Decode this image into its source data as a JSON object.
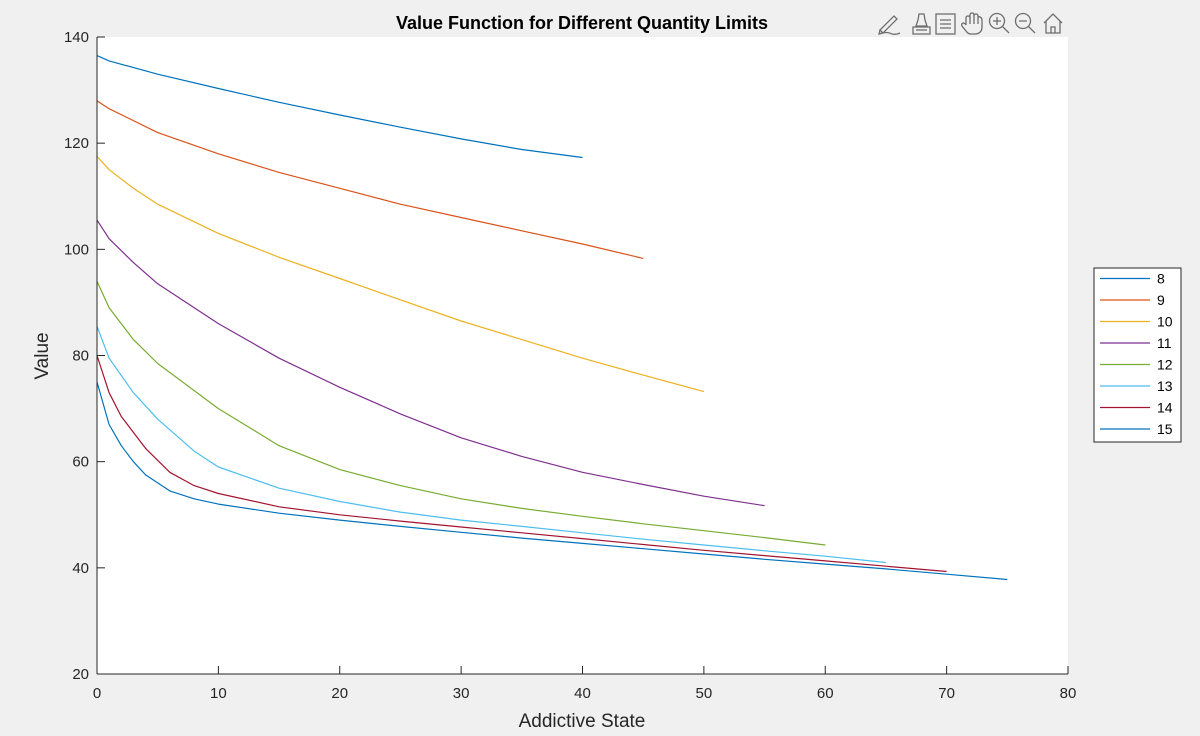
{
  "toolbar": {
    "icons": [
      "brush-edit-icon",
      "data-tips-icon",
      "legend-icon",
      "pan-icon",
      "zoom-in-icon",
      "zoom-out-icon",
      "home-icon"
    ]
  },
  "chart_data": {
    "type": "line",
    "title": "Value Function for Different Quantity Limits",
    "xlabel": "Addictive State",
    "ylabel": "Value",
    "xlim": [
      0,
      80
    ],
    "ylim": [
      20,
      140
    ],
    "xticks": [
      0,
      10,
      20,
      30,
      40,
      50,
      60,
      70,
      80
    ],
    "yticks": [
      20,
      40,
      60,
      80,
      100,
      120,
      140
    ],
    "grid": false,
    "legend_position": "right",
    "series": [
      {
        "name": "8",
        "color": "#0072bd",
        "x": [
          0,
          1,
          5,
          10,
          15,
          20,
          25,
          30,
          35,
          40
        ],
        "y": [
          136.5,
          135.5,
          133,
          130.3,
          127.7,
          125.3,
          123,
          120.8,
          118.8,
          117.3
        ]
      },
      {
        "name": "9",
        "color": "#d95319",
        "x": [
          0,
          1,
          5,
          10,
          15,
          20,
          25,
          30,
          35,
          40,
          45
        ],
        "y": [
          128,
          126.5,
          122,
          118,
          114.5,
          111.5,
          108.5,
          106,
          103.5,
          101,
          98.3
        ]
      },
      {
        "name": "10",
        "color": "#edb120",
        "x": [
          0,
          1,
          3,
          5,
          10,
          15,
          20,
          25,
          30,
          35,
          40,
          45,
          50
        ],
        "y": [
          117.5,
          115,
          111.5,
          108.5,
          103,
          98.5,
          94.5,
          90.5,
          86.5,
          83,
          79.5,
          76.3,
          73.2
        ]
      },
      {
        "name": "11",
        "color": "#7e2f8e",
        "x": [
          0,
          1,
          3,
          5,
          10,
          15,
          20,
          25,
          30,
          35,
          40,
          45,
          50,
          55
        ],
        "y": [
          105.5,
          102,
          97.5,
          93.5,
          86,
          79.5,
          74,
          69,
          64.5,
          61,
          58,
          55.7,
          53.5,
          51.7
        ]
      },
      {
        "name": "12",
        "color": "#77ac30",
        "x": [
          0,
          1,
          3,
          5,
          10,
          15,
          20,
          25,
          30,
          35,
          40,
          45,
          50,
          55,
          60
        ],
        "y": [
          94,
          89,
          83,
          78.5,
          70,
          63,
          58.5,
          55.5,
          53,
          51.2,
          49.7,
          48.3,
          47,
          45.7,
          44.3
        ]
      },
      {
        "name": "13",
        "color": "#4dbeee",
        "x": [
          0,
          1,
          3,
          5,
          8,
          10,
          15,
          20,
          25,
          30,
          35,
          40,
          45,
          50,
          55,
          60,
          65
        ],
        "y": [
          85.5,
          79.5,
          73,
          68,
          62,
          59,
          55,
          52.5,
          50.5,
          49,
          47.8,
          46.6,
          45.4,
          44.3,
          43.2,
          42.2,
          41
        ]
      },
      {
        "name": "14",
        "color": "#a2142f",
        "x": [
          0,
          1,
          2,
          4,
          6,
          8,
          10,
          15,
          20,
          25,
          30,
          35,
          40,
          45,
          50,
          55,
          60,
          65,
          70
        ],
        "y": [
          80,
          73,
          68.5,
          62.5,
          58,
          55.5,
          54,
          51.5,
          50,
          48.8,
          47.7,
          46.6,
          45.5,
          44.4,
          43.3,
          42.3,
          41.3,
          40.3,
          39.3
        ]
      },
      {
        "name": "15",
        "color": "#0072bd",
        "x": [
          0,
          1,
          2,
          3,
          4,
          6,
          8,
          10,
          15,
          20,
          25,
          30,
          35,
          40,
          45,
          50,
          55,
          60,
          65,
          70,
          75
        ],
        "y": [
          75,
          67,
          63,
          60,
          57.5,
          54.5,
          53,
          52,
          50.3,
          49,
          47.8,
          46.7,
          45.6,
          44.6,
          43.6,
          42.6,
          41.6,
          40.7,
          39.8,
          38.8,
          37.8
        ]
      }
    ]
  }
}
